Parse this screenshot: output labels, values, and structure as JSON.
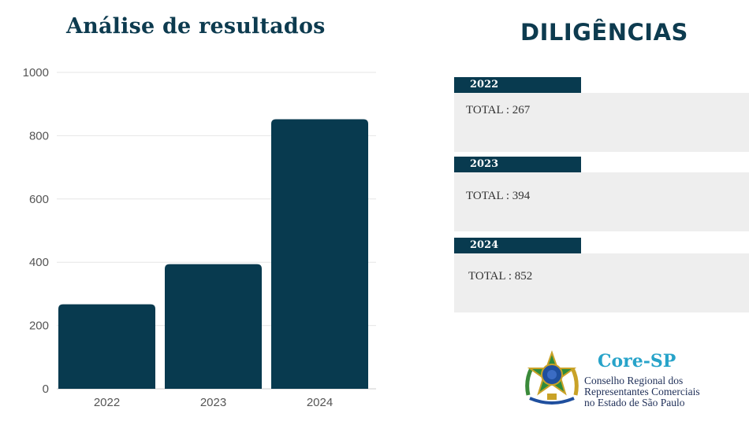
{
  "chart_data": {
    "type": "bar",
    "title": "Análise de resultados",
    "categories": [
      "2022",
      "2023",
      "2024"
    ],
    "values": [
      267,
      394,
      852
    ],
    "ylim": [
      0,
      1000
    ],
    "yticks": [
      0,
      200,
      400,
      600,
      800,
      1000
    ],
    "grid": true,
    "bar_color": "#083a4f"
  },
  "summary": {
    "title": "DILIGÊNCIAS",
    "cards": [
      {
        "year": "2022",
        "text": "TOTAL : 267"
      },
      {
        "year": "2023",
        "text": "TOTAL : 394"
      },
      {
        "year": "2024",
        "text": "TOTAL : 852"
      }
    ]
  },
  "logo": {
    "icon": "brazil-coat-of-arms-icon",
    "name": "Core-SP",
    "lines": [
      "Conselho Regional dos",
      "Representantes Comerciais",
      "no Estado de São Paulo"
    ]
  }
}
